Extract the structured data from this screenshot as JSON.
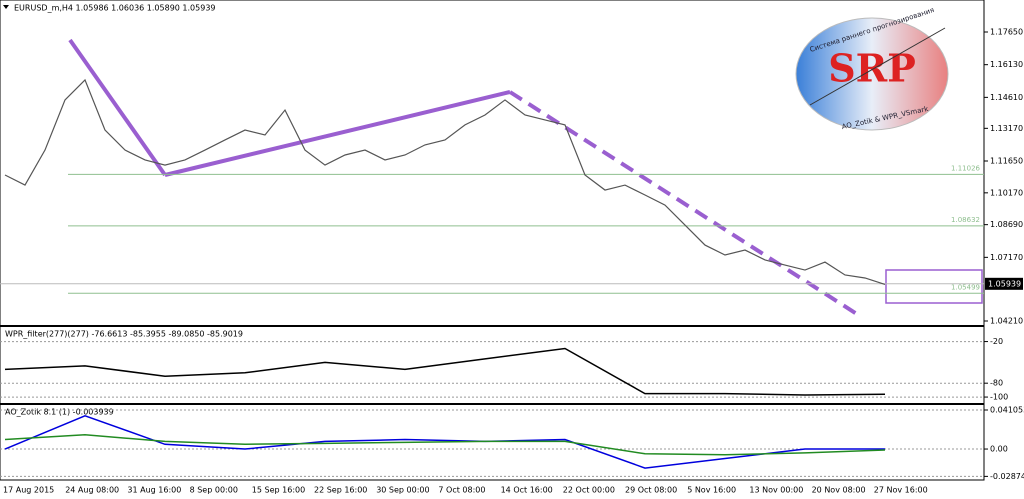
{
  "header": {
    "title": "EURUSD_m,H4  1.05986 1.06036 1.05890 1.05939"
  },
  "logo": {
    "name": "SRP",
    "top": "Система раннего прогнозирования",
    "bottom": "AO_Zotik & WPR_VSmark"
  },
  "time_axis": [
    "17 Aug 2015",
    "24 Aug 08:00",
    "31 Aug 16:00",
    "8 Sep 00:00",
    "15 Sep 16:00",
    "22 Sep 16:00",
    "30 Sep 00:00",
    "7 Oct 08:00",
    "14 Oct 16:00",
    "22 Oct 00:00",
    "29 Oct 08:00",
    "5 Nov 16:00",
    "13 Nov 00:00",
    "20 Nov 08:00",
    "27 Nov 16:00"
  ],
  "chart_data": [
    {
      "type": "line",
      "ylim": [
        1.03977,
        1.19138
      ],
      "yticks": [
        {
          "value": 1.1765,
          "label": "1.17650"
        },
        {
          "value": 1.1613,
          "label": "1.16130"
        },
        {
          "value": 1.1461,
          "label": "1.14610"
        },
        {
          "value": 1.1317,
          "label": "1.13170"
        },
        {
          "value": 1.1165,
          "label": "1.11650"
        },
        {
          "value": 1.1017,
          "label": "1.10170"
        },
        {
          "value": 1.0869,
          "label": "1.08690"
        },
        {
          "value": 1.0717,
          "label": "1.07170"
        },
        {
          "value": 1.0421,
          "label": "1.04210"
        }
      ],
      "levels": [
        1.11026,
        1.08632,
        1.05499
      ],
      "level_color": "#8fbf8f",
      "current": 1.05939,
      "series": [
        {
          "name": "EURUSD_m,H4",
          "color": "#555555",
          "values": [
            1.11,
            1.1053,
            1.1216,
            1.1449,
            1.1542,
            1.1309,
            1.1216,
            1.117,
            1.1146,
            1.117,
            1.1216,
            1.1263,
            1.1309,
            1.1286,
            1.1402,
            1.1216,
            1.1146,
            1.1193,
            1.1216,
            1.117,
            1.1193,
            1.124,
            1.1263,
            1.1333,
            1.1379,
            1.1449,
            1.1379,
            1.1356,
            1.1333,
            1.11,
            1.103,
            1.1053,
            1.1007,
            1.096,
            1.0867,
            1.0774,
            1.0728,
            1.0751,
            1.0705,
            1.0681,
            1.0658,
            1.0695,
            1.0635,
            1.0621,
            1.0591
          ]
        }
      ]
    },
    {
      "type": "line",
      "title": "WPR_filter(277)(277) -76.6613 -85.3955 -89.0850 -85.9019",
      "ylim": [
        -110,
        1
      ],
      "yticks": [
        -20,
        -80,
        -100
      ],
      "series": [
        {
          "name": "WPR",
          "color": "#000000",
          "values": [
            -60,
            -55,
            -70,
            -65,
            -50,
            -60,
            -45,
            -30,
            -95,
            -95,
            -97,
            -96
          ]
        }
      ]
    },
    {
      "type": "line",
      "title": "AO_Zotik 8.1 (1) -0.003939",
      "ylim": [
        -0.0315,
        0.0463
      ],
      "yticks": [
        0.041053,
        {
          "value": 0,
          "label": "0.00"
        },
        -0.02874
      ],
      "series": [
        {
          "name": "AO",
          "color": "#0000dd",
          "values": [
            0,
            0.035,
            0.005,
            0,
            0.008,
            0.01,
            0.008,
            0.01,
            -0.02,
            -0.01,
            0,
            0
          ]
        },
        {
          "name": "AO signal",
          "color": "#228b22",
          "values": [
            0.01,
            0.015,
            0.008,
            0.005,
            0.006,
            0.007,
            0.008,
            0.008,
            -0.005,
            -0.006,
            -0.004,
            -0.001
          ]
        }
      ]
    }
  ]
}
